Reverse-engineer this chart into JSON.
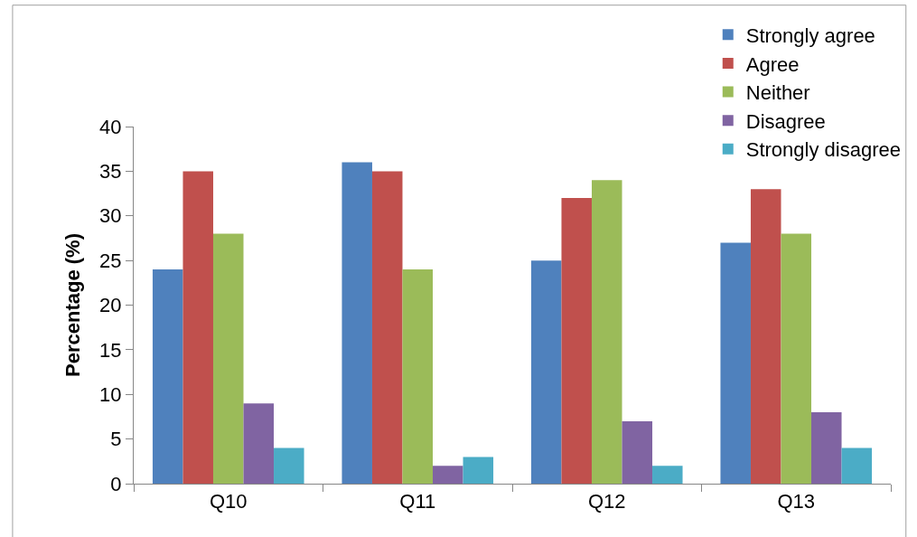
{
  "chart_data": {
    "type": "bar",
    "ylabel": "Percentage (%)",
    "categories": [
      "Q10",
      "Q11",
      "Q12",
      "Q13"
    ],
    "series": [
      {
        "name": "Strongly agree",
        "color": "#4f81bd",
        "values": [
          24,
          36,
          25,
          27
        ]
      },
      {
        "name": "Agree",
        "color": "#c0504d",
        "values": [
          35,
          35,
          32,
          33
        ]
      },
      {
        "name": "Neither",
        "color": "#9bbb59",
        "values": [
          28,
          24,
          34,
          28
        ]
      },
      {
        "name": "Disagree",
        "color": "#8064a2",
        "values": [
          9,
          2,
          7,
          8
        ]
      },
      {
        "name": "Strongly disagree",
        "color": "#4bacc6",
        "values": [
          4,
          3,
          2,
          4
        ]
      }
    ],
    "ylim": [
      0,
      40
    ],
    "yticks": [
      0,
      5,
      10,
      15,
      20,
      25,
      30,
      35,
      40
    ],
    "legend": "top right"
  }
}
